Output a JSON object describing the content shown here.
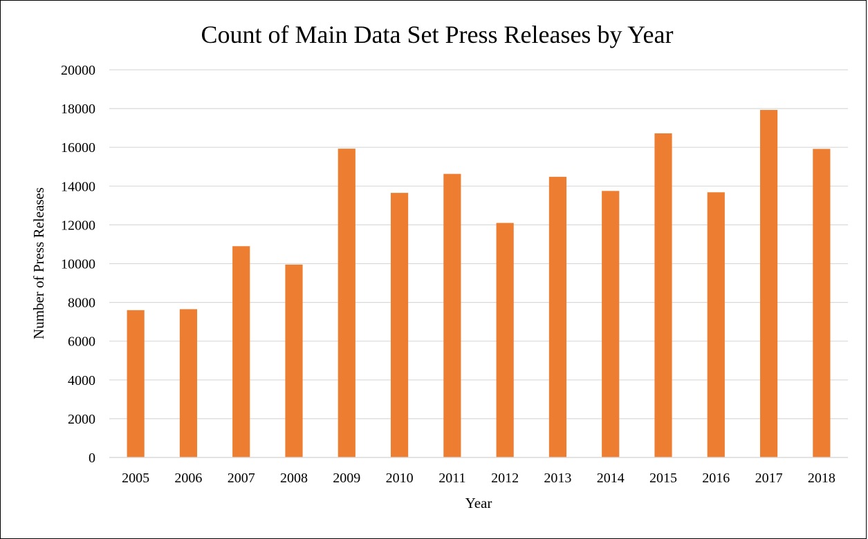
{
  "chart_data": {
    "type": "bar",
    "title": "Count of Main Data Set Press Releases by Year",
    "xlabel": "Year",
    "ylabel": "Number of Press Releases",
    "ylim": [
      0,
      20000
    ],
    "yticks": [
      0,
      2000,
      4000,
      6000,
      8000,
      10000,
      12000,
      14000,
      16000,
      18000,
      20000
    ],
    "grid": true,
    "legend": "none",
    "categories": [
      "2005",
      "2006",
      "2007",
      "2008",
      "2009",
      "2010",
      "2011",
      "2012",
      "2013",
      "2014",
      "2015",
      "2016",
      "2017",
      "2018"
    ],
    "series": [
      {
        "values": [
          7600,
          7650,
          10900,
          9950,
          15930,
          13650,
          14630,
          12100,
          14480,
          13750,
          16720,
          13680,
          17930,
          15920
        ],
        "color": "#ED7D31"
      }
    ]
  }
}
